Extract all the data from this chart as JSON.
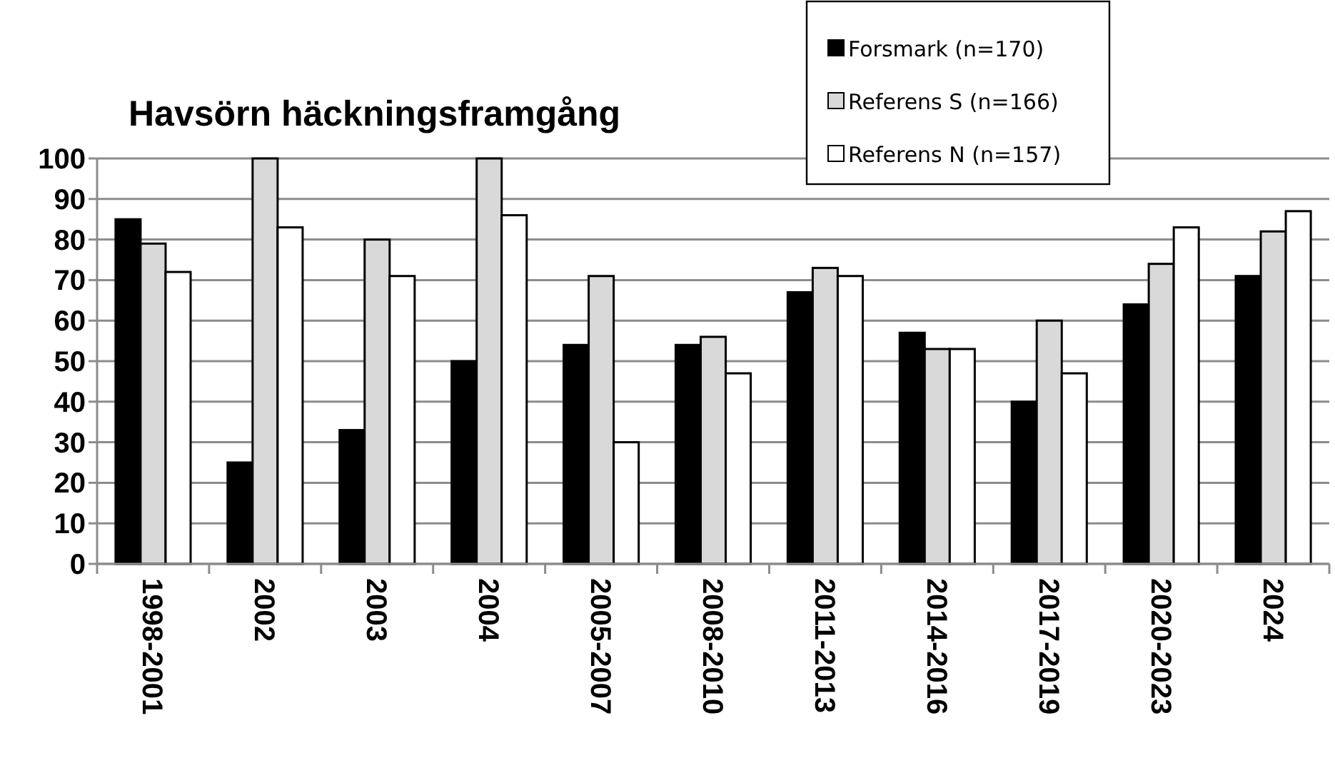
{
  "chart_data": {
    "type": "bar",
    "title": "Havsörn häckningsframgång",
    "categories": [
      "1998-2001",
      "2002",
      "2003",
      "2004",
      "2005-2007",
      "2008-2010",
      "2011-2013",
      "2014-2016",
      "2017-2019",
      "2020-2023",
      "2024"
    ],
    "series": [
      {
        "name": "Forsmark (n=170)",
        "color": "#000000",
        "values": [
          85,
          25,
          33,
          50,
          54,
          54,
          67,
          57,
          40,
          64,
          71
        ]
      },
      {
        "name": "Referens S (n=166)",
        "color": "#d9d9d9",
        "values": [
          79,
          100,
          80,
          100,
          71,
          56,
          73,
          53,
          60,
          74,
          82
        ]
      },
      {
        "name": "Referens N (n=157)",
        "color": "#ffffff",
        "values": [
          72,
          83,
          71,
          86,
          30,
          47,
          71,
          53,
          47,
          83,
          87
        ]
      }
    ],
    "ylim": [
      0,
      100
    ],
    "yticks": [
      0,
      10,
      20,
      30,
      40,
      50,
      60,
      70,
      80,
      90,
      100
    ],
    "grid": "y",
    "legend": "top right"
  }
}
